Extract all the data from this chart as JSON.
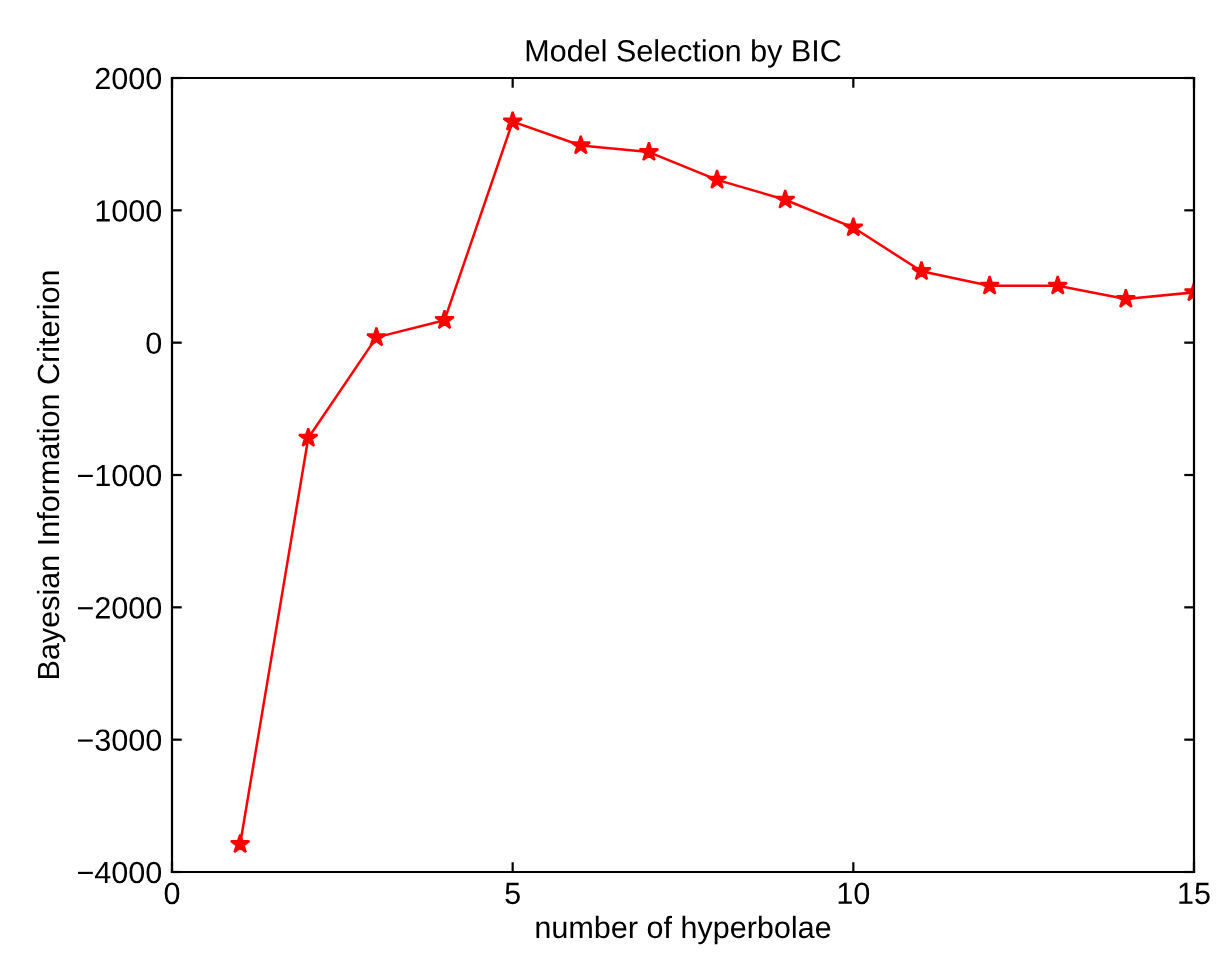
{
  "chart_data": {
    "type": "line",
    "title": "Model Selection by BIC",
    "xlabel": "number of hyperbolae",
    "ylabel": "Bayesian Information Criterion",
    "x": [
      1,
      2,
      3,
      4,
      5,
      6,
      7,
      8,
      9,
      10,
      11,
      12,
      13,
      14,
      15
    ],
    "series": [
      {
        "color": "#ff0000",
        "values": [
          -3790,
          -720,
          40,
          170,
          1670,
          1490,
          1440,
          1230,
          1080,
          870,
          540,
          430,
          430,
          330,
          380
        ]
      }
    ],
    "xlim": [
      0,
      15
    ],
    "xticks": [
      0,
      5,
      10,
      15
    ],
    "ylim": [
      -4000,
      2000
    ],
    "yticks": [
      -4000,
      -3000,
      -2000,
      -1000,
      0,
      1000,
      2000
    ],
    "marker": "star",
    "line_style": "solid",
    "grid": false,
    "legend": false
  }
}
